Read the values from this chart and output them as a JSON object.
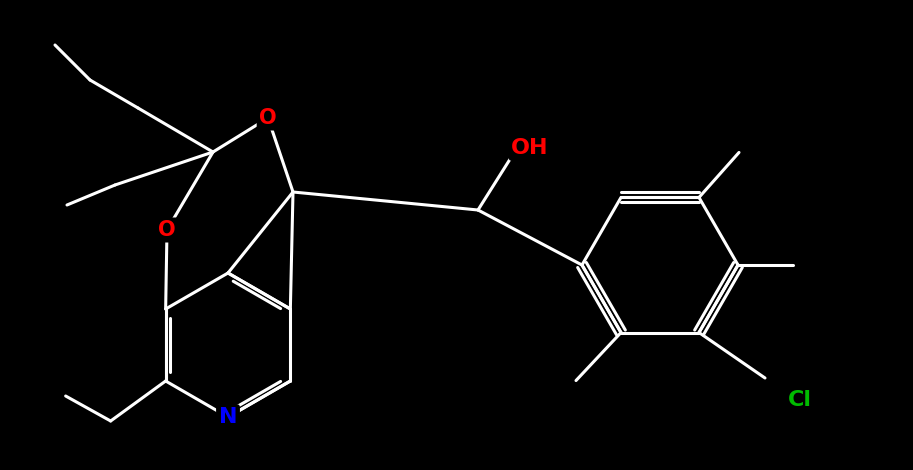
{
  "background_color": "#000000",
  "bond_color": "#ffffff",
  "bond_width": 2.2,
  "atom_colors": {
    "O": "#ff0000",
    "N": "#0000ff",
    "Cl": "#00bb00",
    "OH": "#ff0000"
  },
  "figsize": [
    9.13,
    4.7
  ],
  "dpi": 100,
  "font_size": 15
}
